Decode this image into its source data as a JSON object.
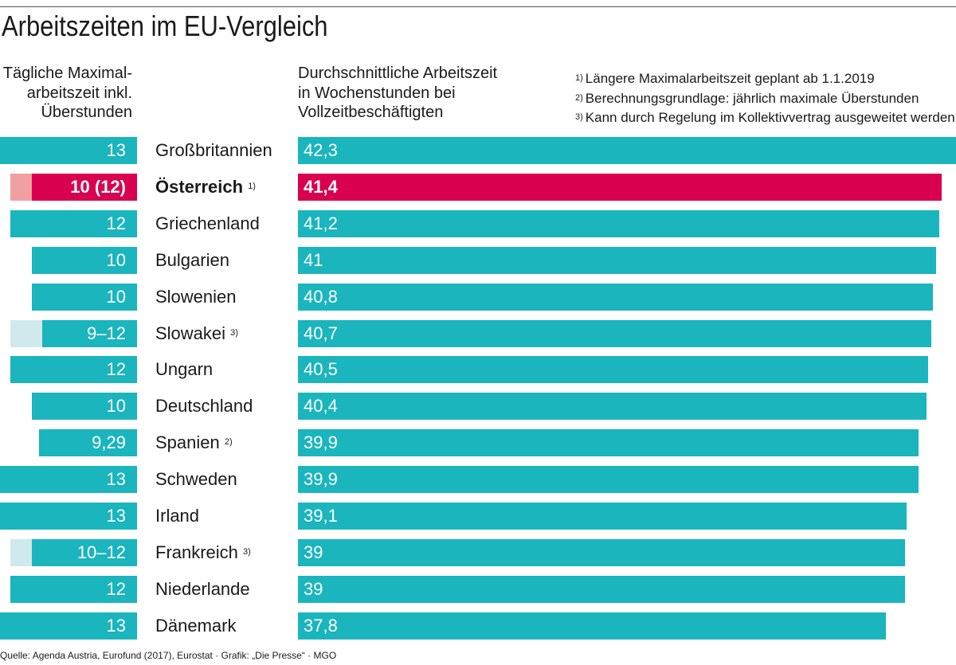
{
  "title": "Arbeitszeiten im EU-Vergleich",
  "left_header": [
    "Tägliche Maximal-",
    "arbeitszeit inkl.",
    "Überstunden"
  ],
  "mid_header": [
    "Durchschnittliche Arbeitszeit",
    "in Wochenstunden bei",
    "Vollzeitbeschäftigten"
  ],
  "notes": [
    {
      "mark": "1)",
      "text": "Längere Maximalarbeitszeit geplant ab 1.1.2019"
    },
    {
      "mark": "2)",
      "text": "Berechnungsgrundlage: jährlich maximale Überstunden"
    },
    {
      "mark": "3)",
      "text": "Kann durch Regelung im Kollektivvertrag ausgeweitet werden"
    }
  ],
  "footer": "Quelle: Agenda Austria, Eurofund (2017), Eurostat  · Grafik: „Die Presse“ · MGO",
  "colors": {
    "teal": "#1ab5bd",
    "teal_light": "#d0e9ec",
    "highlight": "#d9004f",
    "highlight_light": "#f0a0a3"
  },
  "chart_data": {
    "type": "bar",
    "categories": [
      "Großbritannien",
      "Österreich",
      "Griechenland",
      "Bulgarien",
      "Slowenien",
      "Slowakei",
      "Ungarn",
      "Deutschland",
      "Spanien",
      "Schweden",
      "Irland",
      "Frankreich",
      "Niederlande",
      "Dänemark"
    ],
    "category_footnotes": [
      "",
      "1)",
      "",
      "",
      "",
      "3)",
      "",
      "",
      "2)",
      "",
      "",
      "3)",
      "",
      ""
    ],
    "highlight_category": "Österreich",
    "series": [
      {
        "name": "Tägliche Maximalarbeitszeit inkl. Überstunden",
        "labels": [
          "13",
          "10 (12)",
          "12",
          "10",
          "10",
          "9–12",
          "12",
          "10",
          "9,29",
          "13",
          "13",
          "10–12",
          "12",
          "13"
        ],
        "values": [
          13,
          10,
          12,
          10,
          10,
          9,
          12,
          10,
          9.29,
          13,
          13,
          10,
          12,
          13
        ],
        "extended_to": [
          13,
          12,
          12,
          10,
          10,
          12,
          12,
          10,
          9.29,
          13,
          13,
          12,
          12,
          13
        ]
      },
      {
        "name": "Durchschnittliche Arbeitszeit in Wochenstunden bei Vollzeitbeschäftigten",
        "labels": [
          "42,3",
          "41,4",
          "41,2",
          "41",
          "40,8",
          "40,7",
          "40,5",
          "40,4",
          "39,9",
          "39,9",
          "39,1",
          "39",
          "39",
          "37,8"
        ],
        "values": [
          42.3,
          41.4,
          41.2,
          41,
          40.8,
          40.7,
          40.5,
          40.4,
          39.9,
          39.9,
          39.1,
          39,
          39,
          37.8
        ]
      }
    ]
  }
}
